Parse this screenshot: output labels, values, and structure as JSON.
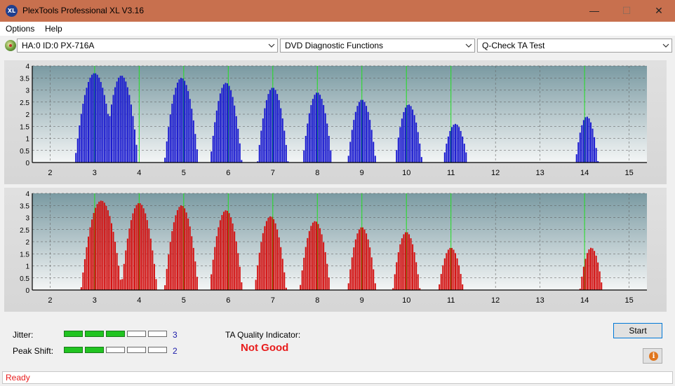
{
  "window": {
    "title": "PlexTools Professional XL V3.16",
    "icon_text": "XL",
    "minimize": "—",
    "maximize": "☐",
    "close": "✕"
  },
  "menu": {
    "items": [
      "Options",
      "Help"
    ]
  },
  "toolbar": {
    "drive": "HA:0 ID:0  PX-716A",
    "function": "DVD Diagnostic Functions",
    "test": "Q-Check TA Test"
  },
  "colors": {
    "title_bar": "#c8704e",
    "upper_bars": "#1a1ad0",
    "lower_bars": "#d41010",
    "markers": "#22e022",
    "plot_background_top": "#7a9aa2",
    "plot_background_bottom": "#f4f6f6"
  },
  "chart_data": [
    {
      "type": "bar",
      "name": "upper",
      "x_ticks": [
        "2",
        "3",
        "4",
        "5",
        "6",
        "7",
        "8",
        "9",
        "10",
        "11",
        "12",
        "13",
        "14",
        "15"
      ],
      "y_ticks": [
        "4",
        "3.5",
        "3",
        "2.5",
        "2",
        "1.5",
        "1",
        "0.5",
        "0"
      ],
      "xlim": [
        1.6,
        15.4
      ],
      "ylim": [
        0,
        4
      ],
      "grid": true,
      "markers": [
        3,
        4,
        5,
        6,
        7,
        8,
        9,
        10,
        11,
        14
      ],
      "peaks": [
        {
          "center": 3.0,
          "height": 3.7,
          "width": 0.35
        },
        {
          "center": 3.6,
          "height": 3.6,
          "width": 0.3
        },
        {
          "center": 4.95,
          "height": 3.5,
          "width": 0.3
        },
        {
          "center": 5.95,
          "height": 3.3,
          "width": 0.28
        },
        {
          "center": 7.0,
          "height": 3.1,
          "width": 0.27
        },
        {
          "center": 8.0,
          "height": 2.9,
          "width": 0.26
        },
        {
          "center": 9.0,
          "height": 2.6,
          "width": 0.25
        },
        {
          "center": 10.05,
          "height": 2.4,
          "width": 0.24
        },
        {
          "center": 11.1,
          "height": 1.6,
          "width": 0.22
        },
        {
          "center": 14.05,
          "height": 1.9,
          "width": 0.2
        }
      ]
    },
    {
      "type": "bar",
      "name": "lower",
      "x_ticks": [
        "2",
        "3",
        "4",
        "5",
        "6",
        "7",
        "8",
        "9",
        "10",
        "11",
        "12",
        "13",
        "14",
        "15"
      ],
      "y_ticks": [
        "4",
        "3.5",
        "3",
        "2.5",
        "2",
        "1.5",
        "1",
        "0.5",
        "0"
      ],
      "xlim": [
        1.6,
        15.4
      ],
      "ylim": [
        0,
        4
      ],
      "grid": true,
      "markers": [
        3,
        4,
        5,
        6,
        7,
        8,
        9,
        10,
        11,
        14
      ],
      "peaks": [
        {
          "center": 3.15,
          "height": 3.7,
          "width": 0.36
        },
        {
          "center": 4.0,
          "height": 3.6,
          "width": 0.32
        },
        {
          "center": 4.95,
          "height": 3.5,
          "width": 0.3
        },
        {
          "center": 5.95,
          "height": 3.3,
          "width": 0.29
        },
        {
          "center": 6.95,
          "height": 3.05,
          "width": 0.28
        },
        {
          "center": 7.95,
          "height": 2.85,
          "width": 0.27
        },
        {
          "center": 9.0,
          "height": 2.6,
          "width": 0.25
        },
        {
          "center": 10.0,
          "height": 2.4,
          "width": 0.24
        },
        {
          "center": 11.0,
          "height": 1.75,
          "width": 0.22
        },
        {
          "center": 14.15,
          "height": 1.75,
          "width": 0.2
        }
      ]
    }
  ],
  "results": {
    "jitter_label": "Jitter:",
    "jitter_value": "3",
    "jitter_level": 3,
    "peak_label": "Peak Shift:",
    "peak_value": "2",
    "peak_level": 2,
    "meter_segments": 5,
    "ta_label": "TA Quality Indicator:",
    "ta_value": "Not Good"
  },
  "buttons": {
    "start": "Start",
    "info": "i"
  },
  "status": {
    "text": "Ready"
  }
}
